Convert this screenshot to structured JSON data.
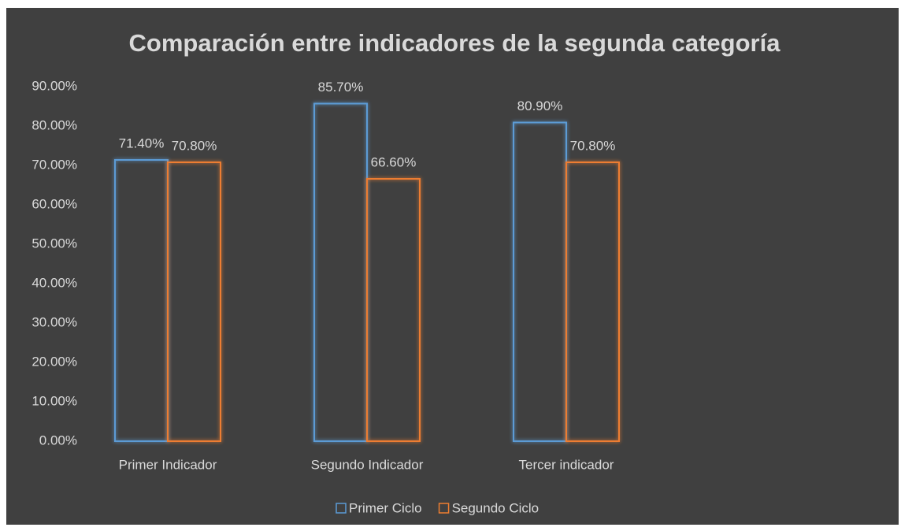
{
  "chart_data": {
    "type": "bar",
    "title": "Comparación entre indicadores de la segunda categoría",
    "categories": [
      "Primer Indicador",
      "Segundo Indicador",
      "Tercer indicador"
    ],
    "series": [
      {
        "name": "Primer Ciclo",
        "color": "#5b9bd5",
        "values": [
          71.4,
          85.7,
          80.9
        ],
        "value_labels": [
          "71.40%",
          "85.70%",
          "80.90%"
        ]
      },
      {
        "name": "Segundo Ciclo",
        "color": "#ed7d31",
        "values": [
          70.8,
          66.6,
          70.8
        ],
        "value_labels": [
          "70.80%",
          "66.60%",
          "70.80%"
        ]
      }
    ],
    "ylim": [
      0,
      90
    ],
    "yticks": [
      {
        "value": 0,
        "label": "0.00%"
      },
      {
        "value": 10,
        "label": "10.00%"
      },
      {
        "value": 20,
        "label": "20.00%"
      },
      {
        "value": 30,
        "label": "30.00%"
      },
      {
        "value": 40,
        "label": "40.00%"
      },
      {
        "value": 50,
        "label": "50.00%"
      },
      {
        "value": 60,
        "label": "60.00%"
      },
      {
        "value": 70,
        "label": "70.00%"
      },
      {
        "value": 80,
        "label": "80.00%"
      },
      {
        "value": 90,
        "label": "90.00%"
      }
    ],
    "grid": false,
    "legend": "bottom"
  }
}
